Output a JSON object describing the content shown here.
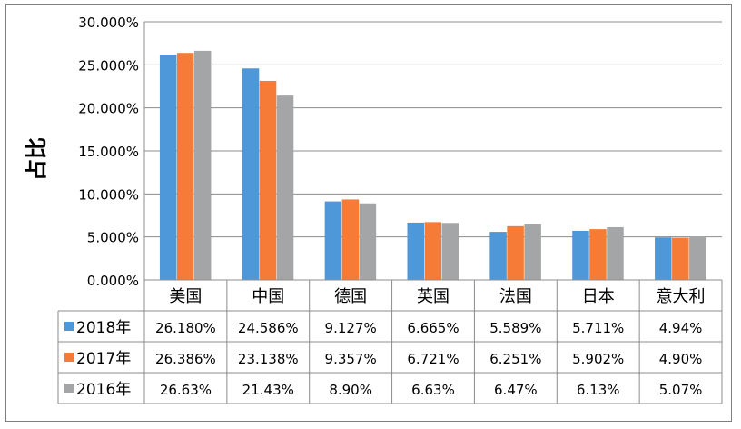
{
  "chart_data": {
    "type": "bar",
    "ylabel": "占比",
    "ylim": [
      0,
      30
    ],
    "y_ticks": [
      "0.000%",
      "5.000%",
      "10.000%",
      "15.000%",
      "20.000%",
      "25.000%",
      "30.000%"
    ],
    "y_tick_values": [
      0,
      5,
      10,
      15,
      20,
      25,
      30
    ],
    "grid": true,
    "legend": "data-table",
    "categories": [
      "美国",
      "中国",
      "德国",
      "英国",
      "法国",
      "日本",
      "意大利"
    ],
    "series": [
      {
        "name": "2018年",
        "color": "#4e97d8",
        "values": [
          26.18,
          24.586,
          9.127,
          6.665,
          5.589,
          5.711,
          4.94
        ],
        "labels": [
          "26.180%",
          "24.586%",
          "9.127%",
          "6.665%",
          "5.589%",
          "5.711%",
          "4.94%"
        ]
      },
      {
        "name": "2017年",
        "color": "#f57b36",
        "values": [
          26.386,
          23.138,
          9.357,
          6.721,
          6.251,
          5.902,
          4.9
        ],
        "labels": [
          "26.386%",
          "23.138%",
          "9.357%",
          "6.721%",
          "6.251%",
          "5.902%",
          "4.90%"
        ]
      },
      {
        "name": "2016年",
        "color": "#a3a5a6",
        "values": [
          26.63,
          21.43,
          8.9,
          6.63,
          6.47,
          6.13,
          5.07
        ],
        "labels": [
          "26.63%",
          "21.43%",
          "8.90%",
          "6.63%",
          "6.47%",
          "6.13%",
          "5.07%"
        ]
      }
    ]
  }
}
